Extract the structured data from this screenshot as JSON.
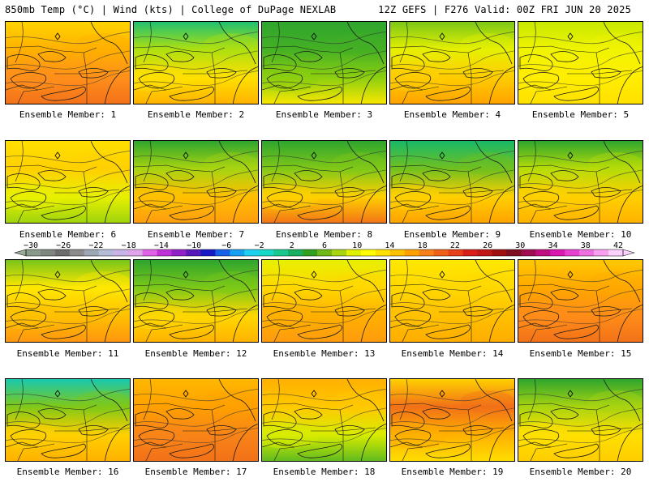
{
  "header": {
    "left": "850mb Temp (°C) | Wind (kts) | College of DuPage NEXLAB",
    "right": "12Z GEFS | F276 Valid: 00Z FRI JUN 20 2025"
  },
  "colorbar": {
    "tick_labels": [
      "−30",
      "−26",
      "−22",
      "−18",
      "−14",
      "−10",
      "−6",
      "−2",
      "2",
      "6",
      "10",
      "14",
      "18",
      "22",
      "26",
      "30",
      "34",
      "38",
      "42"
    ],
    "colors": [
      "#8a9a8a",
      "#7e867e",
      "#6c6c6c",
      "#8c8c8c",
      "#9ca8b4",
      "#b4bcd8",
      "#c8b4e4",
      "#e0a4ec",
      "#e060e8",
      "#c030d8",
      "#9020c8",
      "#5818b8",
      "#1818c8",
      "#1860e8",
      "#18a0f0",
      "#20d0f0",
      "#18d8c8",
      "#18c890",
      "#18b060",
      "#30a020",
      "#70b818",
      "#a8d410",
      "#e0f000",
      "#ffff00",
      "#ffe000",
      "#ffc000",
      "#ffa000",
      "#f88018",
      "#f06018",
      "#e84018",
      "#d82018",
      "#c01818",
      "#a01010",
      "#800c20",
      "#a00c50",
      "#c01080",
      "#d818b0",
      "#e840d0",
      "#f070e0",
      "#f8a0f0",
      "#fcd0fc"
    ]
  },
  "members": [
    {
      "label": "Ensemble Member: 1",
      "colors": [
        "#ffd400",
        "#ffb000",
        "#ff8f1a",
        "#f2701a"
      ]
    },
    {
      "label": "Ensemble Member: 2",
      "colors": [
        "#20c070",
        "#aee010",
        "#ffe000",
        "#ffb000"
      ]
    },
    {
      "label": "Ensemble Member: 3",
      "colors": [
        "#2ea52e",
        "#44b024",
        "#8ccf10",
        "#ffe800"
      ]
    },
    {
      "label": "Ensemble Member: 4",
      "colors": [
        "#7cc818",
        "#e6f000",
        "#ffcc00",
        "#ffa000"
      ]
    },
    {
      "label": "Ensemble Member: 5",
      "colors": [
        "#c8e800",
        "#f0f400",
        "#ffee00",
        "#ffe000"
      ]
    },
    {
      "label": "Ensemble Member: 6",
      "colors": [
        "#ffe000",
        "#ffd000",
        "#e8f000",
        "#9ad20e"
      ]
    },
    {
      "label": "Ensemble Member: 7",
      "colors": [
        "#2ea52e",
        "#a8d410",
        "#ffc000",
        "#ff9a10"
      ]
    },
    {
      "label": "Ensemble Member: 8",
      "colors": [
        "#2ea52e",
        "#80c818",
        "#ffd000",
        "#f27018"
      ]
    },
    {
      "label": "Ensemble Member: 9",
      "colors": [
        "#18b868",
        "#70c020",
        "#ffd000",
        "#ffa000"
      ]
    },
    {
      "label": "Ensemble Member: 10",
      "colors": [
        "#2ea52e",
        "#b6dc08",
        "#ffd000",
        "#ffb000"
      ]
    },
    {
      "label": "Ensemble Member: 11",
      "colors": [
        "#78c41a",
        "#ffe800",
        "#ffc000",
        "#ff9410"
      ]
    },
    {
      "label": "Ensemble Member: 12",
      "colors": [
        "#2ea52e",
        "#7cc818",
        "#ffd800",
        "#ffb000"
      ]
    },
    {
      "label": "Ensemble Member: 13",
      "colors": [
        "#e8f000",
        "#ffd800",
        "#ffb000",
        "#ff9a10"
      ]
    },
    {
      "label": "Ensemble Member: 14",
      "colors": [
        "#ffe800",
        "#ffd800",
        "#ffc000",
        "#ffac00"
      ]
    },
    {
      "label": "Ensemble Member: 15",
      "colors": [
        "#ffc800",
        "#ffa800",
        "#ff8c18",
        "#f27018"
      ]
    },
    {
      "label": "Ensemble Member: 16",
      "colors": [
        "#18c8b0",
        "#80c818",
        "#ffd000",
        "#ffb000"
      ]
    },
    {
      "label": "Ensemble Member: 17",
      "colors": [
        "#ffb800",
        "#ffa000",
        "#f88418",
        "#f27018"
      ]
    },
    {
      "label": "Ensemble Member: 18",
      "colors": [
        "#ffb000",
        "#ffc800",
        "#d8ec00",
        "#5ab820"
      ]
    },
    {
      "label": "Ensemble Member: 19",
      "colors": [
        "#ffd000",
        "#f27018",
        "#ffb000",
        "#ffe000"
      ]
    },
    {
      "label": "Ensemble Member: 20",
      "colors": [
        "#2ea52e",
        "#a8d410",
        "#ffe000",
        "#ffcc00"
      ]
    }
  ]
}
